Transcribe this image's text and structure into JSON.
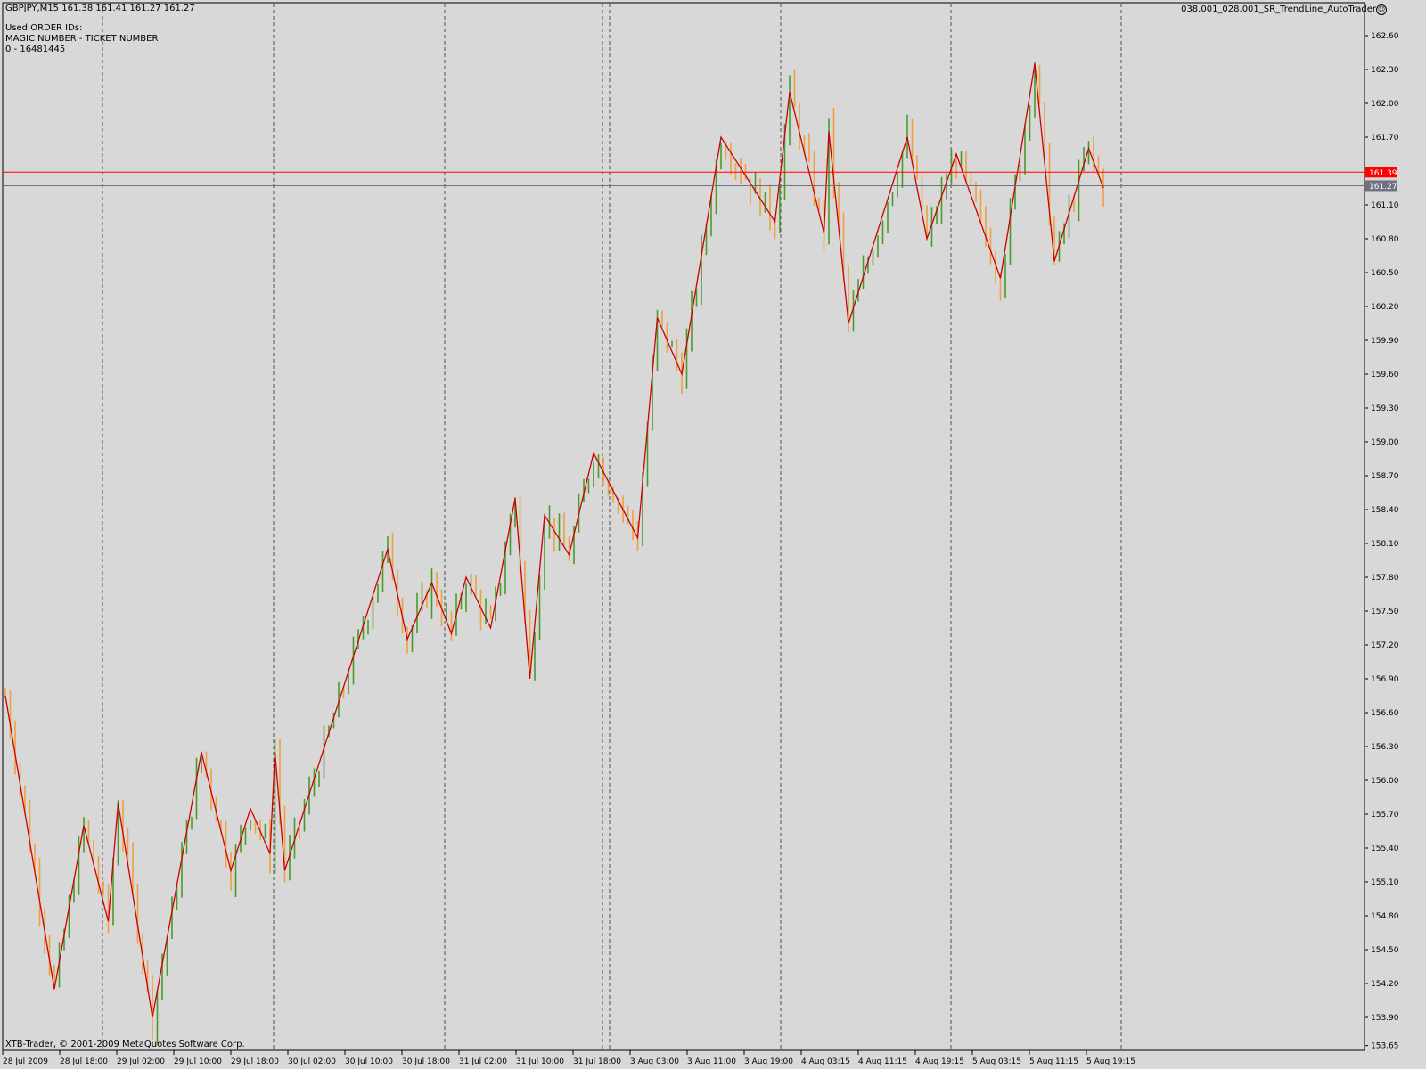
{
  "header": {
    "symbol_line": "GBPJPY,M15  161.38 161.41 161.27 161.27",
    "expert_name": "038.001_028.001_SR_TrendLine_AutoTrader",
    "expert_icon": "smiley-icon"
  },
  "orders": {
    "title": "Used ORDER IDs:",
    "columns": "MAGIC NUMBER - TICKET NUMBER",
    "entry": "0 - 16481445"
  },
  "footer": {
    "copyright": "XTB-Trader, © 2001-2009 MetaQuotes Software Corp."
  },
  "colors": {
    "background": "#d8d8d8",
    "bull_bar": "#4a9a2a",
    "bear_bar": "#f0a040",
    "zigzag": "#cc0000",
    "bid_line": "#ff0000",
    "last_line": "#707080",
    "grid": "#505050"
  },
  "chart_data": {
    "type": "line",
    "symbol": "GBPJPY",
    "timeframe": "M15",
    "quote": {
      "open": 161.38,
      "high": 161.41,
      "low": 161.27,
      "close": 161.27
    },
    "y_ticks": [
      "162.60",
      "162.30",
      "162.00",
      "161.70",
      "161.10",
      "160.80",
      "160.50",
      "160.20",
      "159.90",
      "159.60",
      "159.30",
      "159.00",
      "158.70",
      "158.40",
      "158.10",
      "157.80",
      "157.50",
      "157.20",
      "156.90",
      "156.60",
      "156.30",
      "156.00",
      "155.70",
      "155.40",
      "155.10",
      "154.80",
      "154.50",
      "154.20",
      "153.90",
      "153.65"
    ],
    "ylim": [
      153.65,
      162.75
    ],
    "x_ticks": [
      "28 Jul 2009",
      "28 Jul 18:00",
      "29 Jul 02:00",
      "29 Jul 10:00",
      "29 Jul 18:00",
      "30 Jul 02:00",
      "30 Jul 10:00",
      "30 Jul 18:00",
      "31 Jul 02:00",
      "31 Jul 10:00",
      "31 Jul 18:00",
      "3 Aug 03:00",
      "3 Aug 11:00",
      "3 Aug 19:00",
      "4 Aug 03:15",
      "4 Aug 11:15",
      "4 Aug 19:15",
      "5 Aug 03:15",
      "5 Aug 11:15",
      "5 Aug 19:15"
    ],
    "h_lines": [
      {
        "price": 161.39,
        "label": "161.39",
        "color": "#ff0000"
      },
      {
        "price": 161.27,
        "label": "161.27",
        "color": "#707080"
      }
    ],
    "zigzag": [
      [
        0,
        156.75
      ],
      [
        10,
        154.15
      ],
      [
        16,
        155.6
      ],
      [
        21,
        154.75
      ],
      [
        23,
        155.8
      ],
      [
        30,
        153.9
      ],
      [
        40,
        156.25
      ],
      [
        46,
        155.2
      ],
      [
        50,
        155.75
      ],
      [
        54,
        155.35
      ],
      [
        55,
        156.25
      ],
      [
        57,
        155.2
      ],
      [
        78,
        158.05
      ],
      [
        82,
        157.25
      ],
      [
        87,
        157.75
      ],
      [
        91,
        157.3
      ],
      [
        94,
        157.8
      ],
      [
        99,
        157.35
      ],
      [
        104,
        158.5
      ],
      [
        107,
        156.9
      ],
      [
        110,
        158.35
      ],
      [
        115,
        158.0
      ],
      [
        120,
        158.9
      ],
      [
        129,
        158.15
      ],
      [
        133,
        160.1
      ],
      [
        138,
        159.6
      ],
      [
        146,
        161.7
      ],
      [
        157,
        160.95
      ],
      [
        160,
        162.1
      ],
      [
        167,
        160.85
      ],
      [
        168,
        161.75
      ],
      [
        172,
        160.05
      ],
      [
        184,
        161.7
      ],
      [
        188,
        160.8
      ],
      [
        194,
        161.55
      ],
      [
        203,
        160.45
      ],
      [
        210,
        162.35
      ],
      [
        214,
        160.6
      ],
      [
        221,
        161.6
      ],
      [
        224,
        161.25
      ]
    ]
  }
}
